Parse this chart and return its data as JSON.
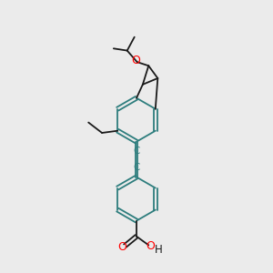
{
  "background_color": "#ebebeb",
  "line_color": "#1a1a1a",
  "bond_color": "#2d7d7d",
  "oxygen_color": "#ff0000",
  "carbon_label_color": "#2d7d7d",
  "figsize": [
    3.0,
    3.0
  ],
  "dpi": 100,
  "xlim": [
    0,
    10
  ],
  "ylim": [
    0,
    13
  ],
  "lw": 1.3
}
